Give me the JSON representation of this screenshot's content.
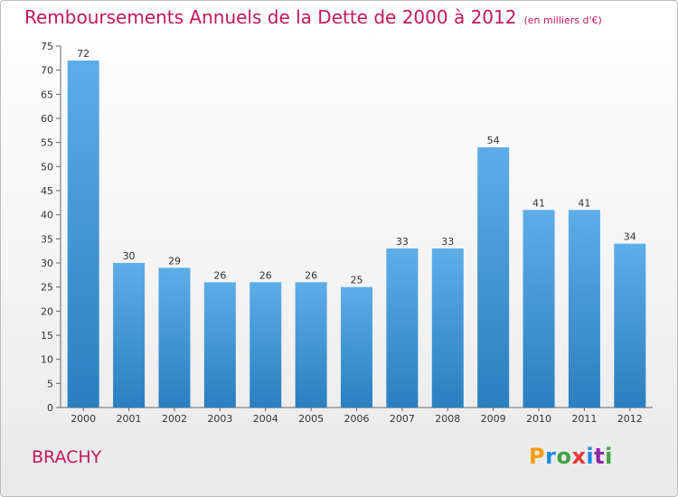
{
  "header": {
    "title": "Remboursements Annuels de la Dette de 2000 à 2012",
    "subtitle": "(en milliers d'€)"
  },
  "footer": {
    "commune": "BRACHY",
    "brand": [
      "P",
      "r",
      "o",
      "x",
      "i",
      "t",
      "i"
    ],
    "brand_colors": [
      "#f39c12",
      "#1e88e5",
      "#43a047",
      "#e53935",
      "#1e88e5",
      "#8e24aa",
      "#43a047"
    ]
  },
  "chart_data": {
    "type": "bar",
    "title": "Remboursements Annuels de la Dette de 2000 à 2012",
    "subtitle": "(en milliers d'€)",
    "categories": [
      "2000",
      "2001",
      "2002",
      "2003",
      "2004",
      "2005",
      "2006",
      "2007",
      "2008",
      "2009",
      "2010",
      "2011",
      "2012"
    ],
    "values": [
      72,
      30,
      29,
      26,
      26,
      26,
      25,
      33,
      33,
      54,
      41,
      41,
      34
    ],
    "ylim": [
      0,
      75
    ],
    "yticks": [
      0,
      5,
      10,
      15,
      20,
      25,
      30,
      35,
      40,
      45,
      50,
      55,
      60,
      65,
      70,
      75
    ],
    "grid": false,
    "bar_color_top": "#5dade8",
    "bar_color_bottom": "#2a7fc0",
    "label_color": "#333333"
  }
}
